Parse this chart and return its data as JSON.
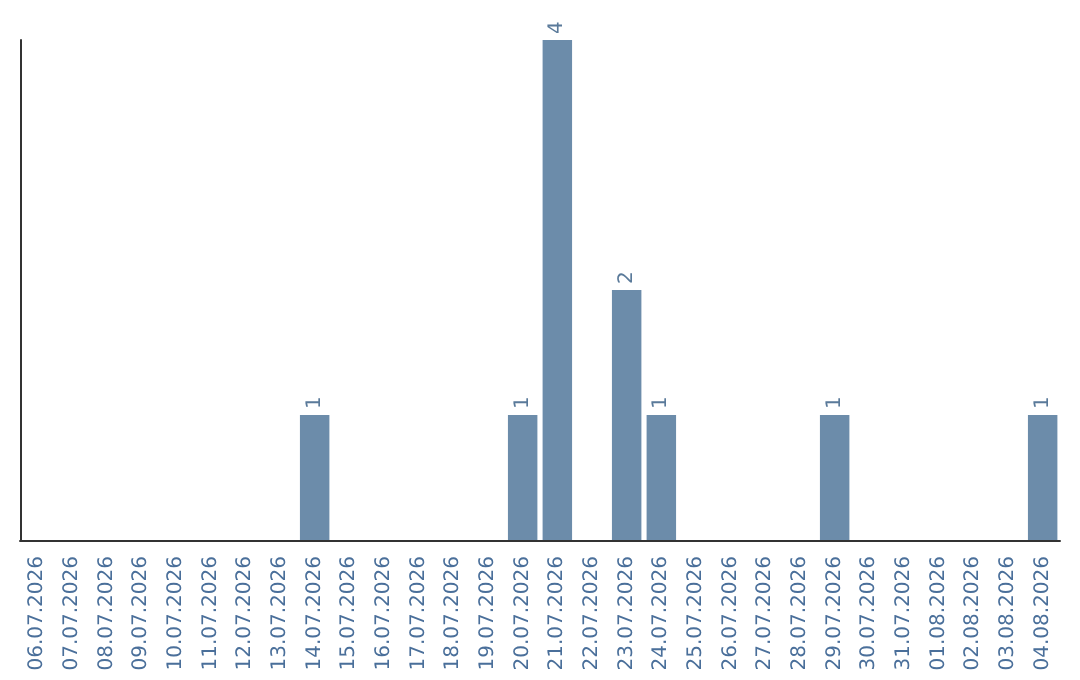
{
  "chart_data": {
    "type": "bar",
    "categories": [
      "06.07.2026",
      "07.07.2026",
      "08.07.2026",
      "09.07.2026",
      "10.07.2026",
      "11.07.2026",
      "12.07.2026",
      "13.07.2026",
      "14.07.2026",
      "15.07.2026",
      "16.07.2026",
      "17.07.2026",
      "18.07.2026",
      "19.07.2026",
      "20.07.2026",
      "21.07.2026",
      "22.07.2026",
      "23.07.2026",
      "24.07.2026",
      "25.07.2026",
      "26.07.2026",
      "27.07.2026",
      "28.07.2026",
      "29.07.2026",
      "30.07.2026",
      "31.07.2026",
      "01.08.2026",
      "02.08.2026",
      "03.08.2026",
      "04.08.2026"
    ],
    "values": [
      0,
      0,
      0,
      0,
      0,
      0,
      0,
      0,
      1,
      0,
      0,
      0,
      0,
      0,
      1,
      4,
      0,
      2,
      1,
      0,
      0,
      0,
      0,
      1,
      0,
      0,
      0,
      0,
      0,
      1
    ],
    "value_labels": [
      null,
      null,
      null,
      null,
      null,
      null,
      null,
      null,
      "1",
      null,
      null,
      null,
      null,
      null,
      "1",
      "4",
      null,
      "2",
      "1",
      null,
      null,
      null,
      null,
      "1",
      null,
      null,
      null,
      null,
      null,
      "1"
    ],
    "color": "#6c8caa",
    "grid": false,
    "tick_labels": "x"
  }
}
